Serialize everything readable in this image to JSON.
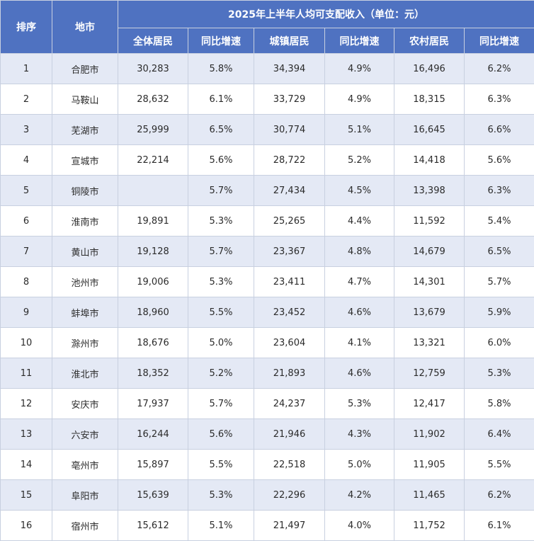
{
  "chart_data": {
    "type": "table",
    "title": "2025年上半年人均可支配收入（单位：元）",
    "header": {
      "rank": "排序",
      "city": "地市",
      "group_title": "2025年上半年人均可支配收入（单位：元）",
      "sub": [
        "全体居民",
        "同比增速",
        "城镇居民",
        "同比增速",
        "农村居民",
        "同比增速"
      ]
    },
    "rows": [
      [
        "1",
        "合肥市",
        "30,283",
        "5.8%",
        "34,394",
        "4.9%",
        "16,496",
        "6.2%"
      ],
      [
        "2",
        "马鞍山",
        "28,632",
        "6.1%",
        "33,729",
        "4.9%",
        "18,315",
        "6.3%"
      ],
      [
        "3",
        "芜湖市",
        "25,999",
        "6.5%",
        "30,774",
        "5.1%",
        "16,645",
        "6.6%"
      ],
      [
        "4",
        "宣城市",
        "22,214",
        "5.6%",
        "28,722",
        "5.2%",
        "14,418",
        "5.6%"
      ],
      [
        "5",
        "铜陵市",
        "",
        "5.7%",
        "27,434",
        "4.5%",
        "13,398",
        "6.3%"
      ],
      [
        "6",
        "淮南市",
        "19,891",
        "5.3%",
        "25,265",
        "4.4%",
        "11,592",
        "5.4%"
      ],
      [
        "7",
        "黄山市",
        "19,128",
        "5.7%",
        "23,367",
        "4.8%",
        "14,679",
        "6.5%"
      ],
      [
        "8",
        "池州市",
        "19,006",
        "5.3%",
        "23,411",
        "4.7%",
        "14,301",
        "5.7%"
      ],
      [
        "9",
        "蚌埠市",
        "18,960",
        "5.5%",
        "23,452",
        "4.6%",
        "13,679",
        "5.9%"
      ],
      [
        "10",
        "滁州市",
        "18,676",
        "5.0%",
        "23,604",
        "4.1%",
        "13,321",
        "6.0%"
      ],
      [
        "11",
        "淮北市",
        "18,352",
        "5.2%",
        "21,893",
        "4.6%",
        "12,759",
        "5.3%"
      ],
      [
        "12",
        "安庆市",
        "17,937",
        "5.7%",
        "24,237",
        "5.3%",
        "12,417",
        "5.8%"
      ],
      [
        "13",
        "六安市",
        "16,244",
        "5.6%",
        "21,946",
        "4.3%",
        "11,902",
        "6.4%"
      ],
      [
        "14",
        "亳州市",
        "15,897",
        "5.5%",
        "22,518",
        "5.0%",
        "11,905",
        "5.5%"
      ],
      [
        "15",
        "阜阳市",
        "15,639",
        "5.3%",
        "22,296",
        "4.2%",
        "11,465",
        "6.2%"
      ],
      [
        "16",
        "宿州市",
        "15,612",
        "5.1%",
        "21,497",
        "4.0%",
        "11,752",
        "6.1%"
      ]
    ]
  }
}
